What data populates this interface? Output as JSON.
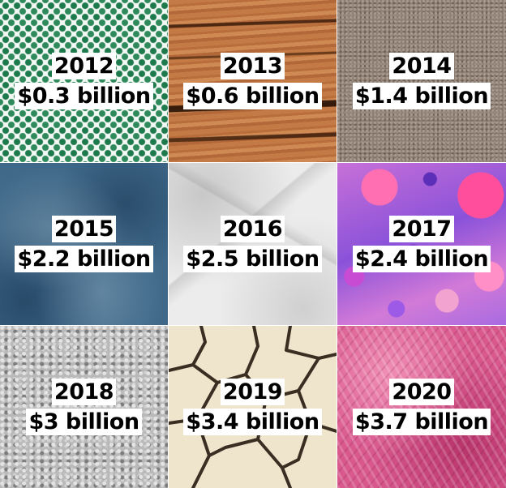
{
  "tiles": [
    {
      "year": "2012",
      "amount": "$0.3 billion",
      "texture": "green-dot-pattern"
    },
    {
      "year": "2013",
      "amount": "$0.6 billion",
      "texture": "cracked-wood"
    },
    {
      "year": "2014",
      "amount": "$1.4 billion",
      "texture": "gray-carpet"
    },
    {
      "year": "2015",
      "amount": "$2.2 billion",
      "texture": "blue-mottled"
    },
    {
      "year": "2016",
      "amount": "$2.5 billion",
      "texture": "crumpled-paper"
    },
    {
      "year": "2017",
      "amount": "$2.4 billion",
      "texture": "pink-purple-paint-splatter"
    },
    {
      "year": "2018",
      "amount": "$3 billion",
      "texture": "gray-stucco"
    },
    {
      "year": "2019",
      "amount": "$3.4 billion",
      "texture": "cracked-dry-earth"
    },
    {
      "year": "2020",
      "amount": "$3.7 billion",
      "texture": "pink-fur"
    }
  ],
  "colors": {
    "label_background": "#ffffff",
    "label_text": "#000000"
  }
}
